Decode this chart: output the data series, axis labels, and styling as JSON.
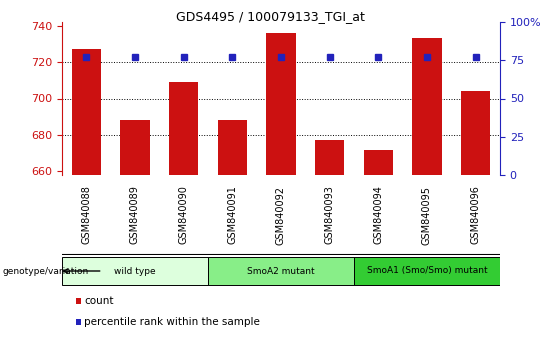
{
  "title": "GDS4495 / 100079133_TGI_at",
  "samples": [
    "GSM840088",
    "GSM840089",
    "GSM840090",
    "GSM840091",
    "GSM840092",
    "GSM840093",
    "GSM840094",
    "GSM840095",
    "GSM840096"
  ],
  "counts": [
    727,
    688,
    709,
    688,
    736,
    677,
    672,
    733,
    704
  ],
  "percentile_y_left": [
    723,
    723,
    723,
    723,
    723,
    723,
    723,
    723,
    723
  ],
  "ylim_left": [
    658,
    742
  ],
  "ylim_right": [
    0,
    100
  ],
  "yticks_left": [
    660,
    680,
    700,
    720,
    740
  ],
  "yticks_right": [
    0,
    25,
    50,
    75,
    100
  ],
  "bar_color": "#cc1111",
  "dot_color": "#2222bb",
  "groups": [
    {
      "label": "wild type",
      "start": 0,
      "end": 3,
      "color": "#ddffdd"
    },
    {
      "label": "SmoA2 mutant",
      "start": 3,
      "end": 6,
      "color": "#88ee88"
    },
    {
      "label": "SmoA1 (Smo/Smo) mutant",
      "start": 6,
      "end": 9,
      "color": "#33cc33"
    }
  ],
  "legend_count_label": "count",
  "legend_percentile_label": "percentile rank within the sample",
  "genotype_label": "genotype/variation",
  "dotted_lines": [
    720,
    700,
    680
  ],
  "tick_bg_color": "#cccccc",
  "tick_sep_color": "#ffffff"
}
